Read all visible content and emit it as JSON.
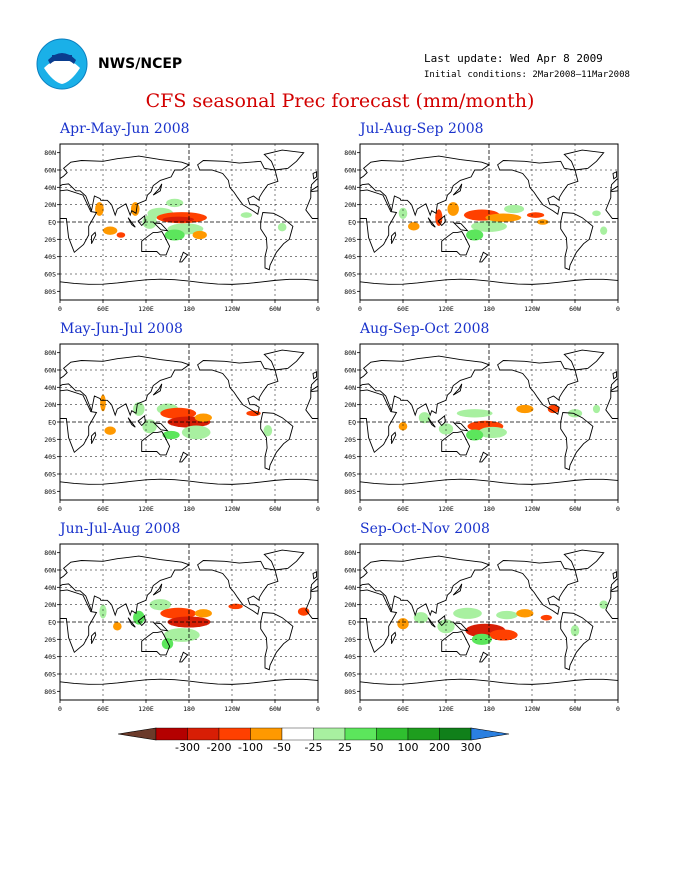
{
  "header": {
    "org": "NWS/NCEP",
    "last_update": "Last update: Wed Apr  8 2009",
    "initial_conditions": "Initial conditions: 2Mar2008–11Mar2008",
    "title": "CFS seasonal Prec forecast (mm/month)"
  },
  "panels": [
    {
      "title": "Apr-May-Jun 2008"
    },
    {
      "title": "Jul-Aug-Sep 2008"
    },
    {
      "title": "May-Jun-Jul 2008"
    },
    {
      "title": "Aug-Sep-Oct 2008"
    },
    {
      "title": "Jun-Jul-Aug 2008"
    },
    {
      "title": "Sep-Oct-Nov 2008"
    }
  ],
  "axes": {
    "lat_labels": [
      "80N",
      "60N",
      "40N",
      "20N",
      "EQ",
      "20S",
      "40S",
      "60S",
      "80S"
    ],
    "lon_labels": [
      "0",
      "60E",
      "120E",
      "180",
      "120W",
      "60W",
      "0"
    ]
  },
  "legend": {
    "labels": [
      "-300",
      "-200",
      "-100",
      "-50",
      "-25",
      "25",
      "50",
      "100",
      "200",
      "300"
    ],
    "colors": [
      "#6b3a2a",
      "#b40000",
      "#d81e05",
      "#ff4000",
      "#ff9900",
      "#ffffff",
      "#a8f0a0",
      "#5ce65c",
      "#2fbf2f",
      "#1e9e1e",
      "#10801a",
      "#2a7fe0"
    ]
  }
}
